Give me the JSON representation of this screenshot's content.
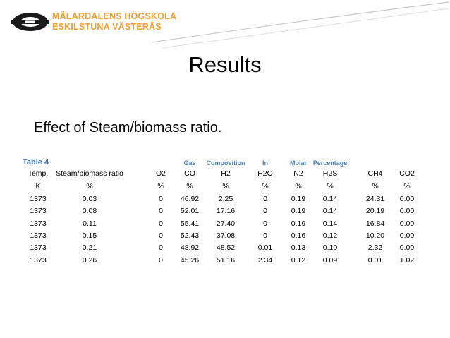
{
  "logo": {
    "line1": "MÄLARDALENS HÖGSKOLA",
    "line2": "ESKILSTUNA VÄSTERÅS",
    "accent_color": "#f0a030",
    "mark_icon": "mdh-logo-icon"
  },
  "slide": {
    "title": "Results",
    "subtitle": "Effect of Steam/biomass ratio."
  },
  "table": {
    "caption": "Table 4",
    "group_labels": [
      "Gas",
      "Composition",
      "In",
      "Molar",
      "Percentage"
    ],
    "headers": [
      "Temp.",
      "Steam/biomass ratio",
      "O2",
      "CO",
      "H2",
      "H2O",
      "N2",
      "H2S",
      "CH4",
      "CO2"
    ],
    "units": [
      "K",
      "%",
      "%",
      "%",
      "%",
      "%",
      "%",
      "%",
      "%",
      "%"
    ],
    "rows": [
      [
        "1373",
        "0.03",
        "0",
        "46.92",
        "2.25",
        "0",
        "0.19",
        "0.14",
        "24.31",
        "0.00"
      ],
      [
        "1373",
        "0.08",
        "0",
        "52.01",
        "17.16",
        "0",
        "0.19",
        "0.14",
        "20.19",
        "0.00"
      ],
      [
        "1373",
        "0.11",
        "0",
        "55.41",
        "27.40",
        "0",
        "0.19",
        "0.14",
        "16.84",
        "0.00"
      ],
      [
        "1373",
        "0.15",
        "0",
        "52.43",
        "37.08",
        "0",
        "0.16",
        "0.12",
        "10.20",
        "0.00"
      ],
      [
        "1373",
        "0.21",
        "0",
        "48.92",
        "48.52",
        "0.01",
        "0.13",
        "0.10",
        "2.32",
        "0.00"
      ],
      [
        "1373",
        "0.26",
        "0",
        "45.26",
        "51.16",
        "2.34",
        "0.12",
        "0.09",
        "0.01",
        "1.02"
      ]
    ]
  }
}
